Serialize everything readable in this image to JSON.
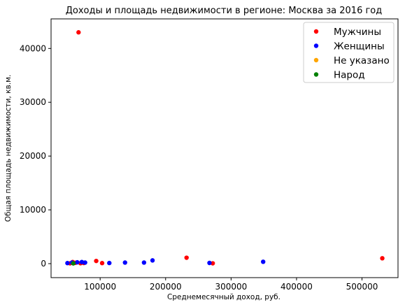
{
  "chart_data": {
    "type": "scatter",
    "title": "Доходы и площадь недвижимости в регионе: Москва за 2016 год",
    "xlabel": "Среднемесячный доход, руб.",
    "ylabel": "Общая площадь недвижимости, кв.м.",
    "xlim": [
      25000,
      555000
    ],
    "ylim": [
      -2600,
      45500
    ],
    "xticks": [
      100000,
      200000,
      300000,
      400000,
      500000
    ],
    "xtick_labels": [
      "100000",
      "200000",
      "300000",
      "400000",
      "500000"
    ],
    "yticks": [
      0,
      10000,
      20000,
      30000,
      40000
    ],
    "ytick_labels": [
      "0",
      "10000",
      "20000",
      "30000",
      "40000"
    ],
    "grid": false,
    "legend_position": "top-right",
    "series": [
      {
        "name": "Мужчины",
        "color": "#ff0000",
        "points": [
          [
            67000,
            43000
          ],
          [
            94000,
            500
          ],
          [
            103000,
            100
          ],
          [
            232000,
            1100
          ],
          [
            272000,
            60
          ],
          [
            531000,
            1000
          ],
          [
            58000,
            300
          ],
          [
            62000,
            150
          ],
          [
            70000,
            80
          ],
          [
            75000,
            120
          ],
          [
            54000,
            60
          ]
        ]
      },
      {
        "name": "Женщины",
        "color": "#0000ff",
        "points": [
          [
            50000,
            100
          ],
          [
            57000,
            200
          ],
          [
            65000,
            250
          ],
          [
            72000,
            300
          ],
          [
            77000,
            200
          ],
          [
            114000,
            120
          ],
          [
            138000,
            200
          ],
          [
            167000,
            200
          ],
          [
            180000,
            600
          ],
          [
            267000,
            130
          ],
          [
            349000,
            350
          ]
        ]
      },
      {
        "name": "Не указано",
        "color": "#ffa500",
        "points": []
      },
      {
        "name": "Народ",
        "color": "#008000",
        "points": [
          [
            59000,
            50
          ]
        ]
      }
    ]
  }
}
